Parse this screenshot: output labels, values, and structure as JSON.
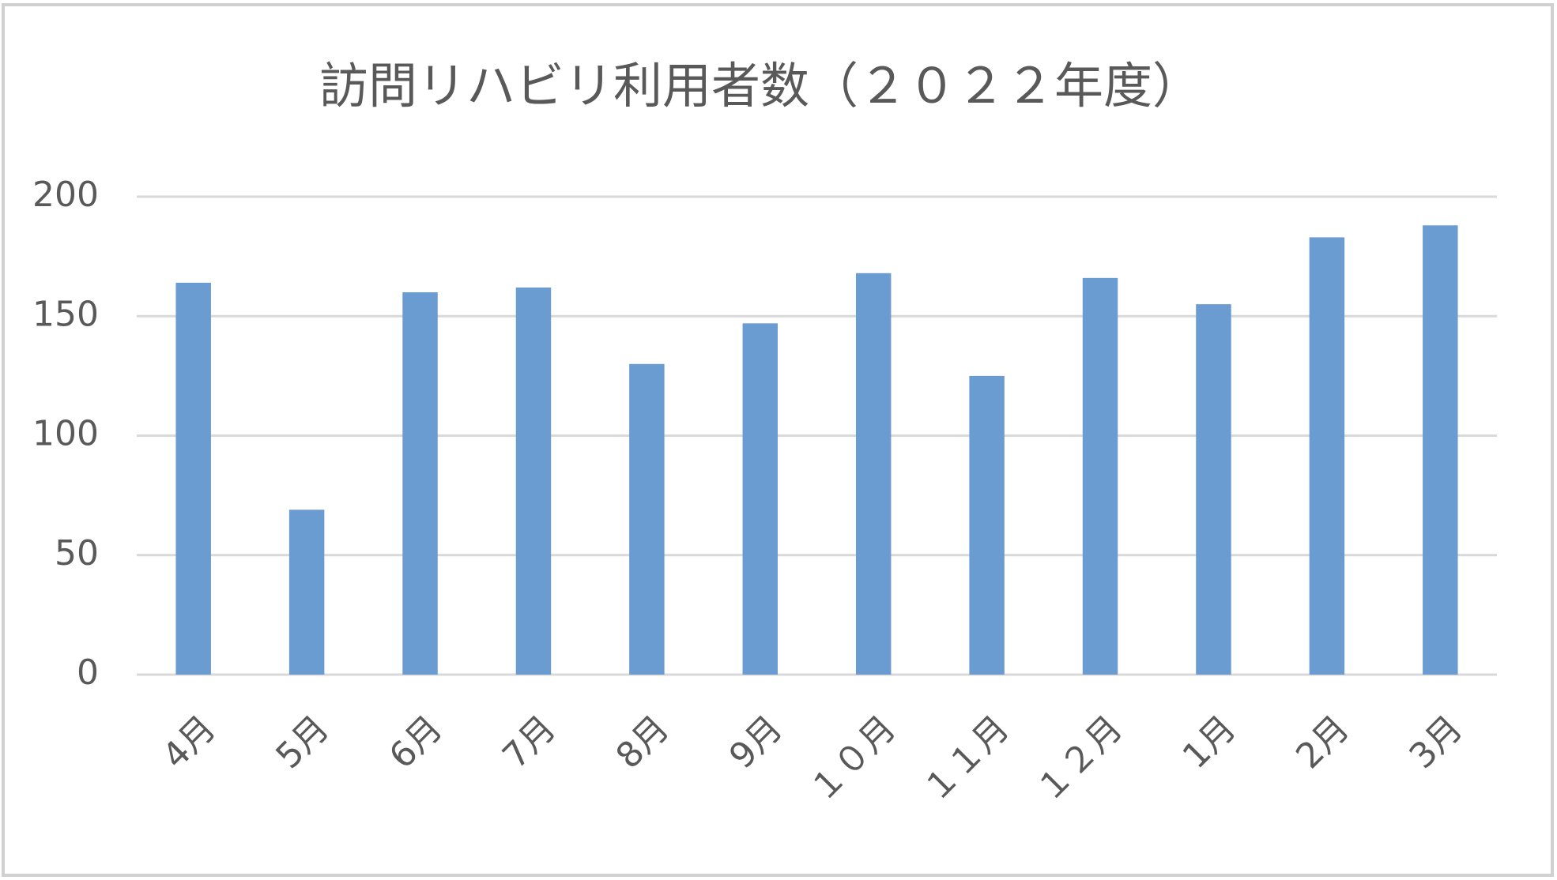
{
  "chart_data": {
    "type": "bar",
    "title": "訪問リハビリ利用者数（２０２２年度）",
    "categories": [
      "4月",
      "5月",
      "6月",
      "7月",
      "8月",
      "9月",
      "１０月",
      "１１月",
      "１２月",
      "1月",
      "2月",
      "3月"
    ],
    "values": [
      164,
      69,
      160,
      162,
      130,
      147,
      168,
      125,
      166,
      155,
      183,
      188
    ],
    "color": "#6a9bd1",
    "ylim": [
      0,
      200
    ],
    "yticks": [
      0,
      50,
      100,
      150,
      200
    ],
    "grid": true
  }
}
